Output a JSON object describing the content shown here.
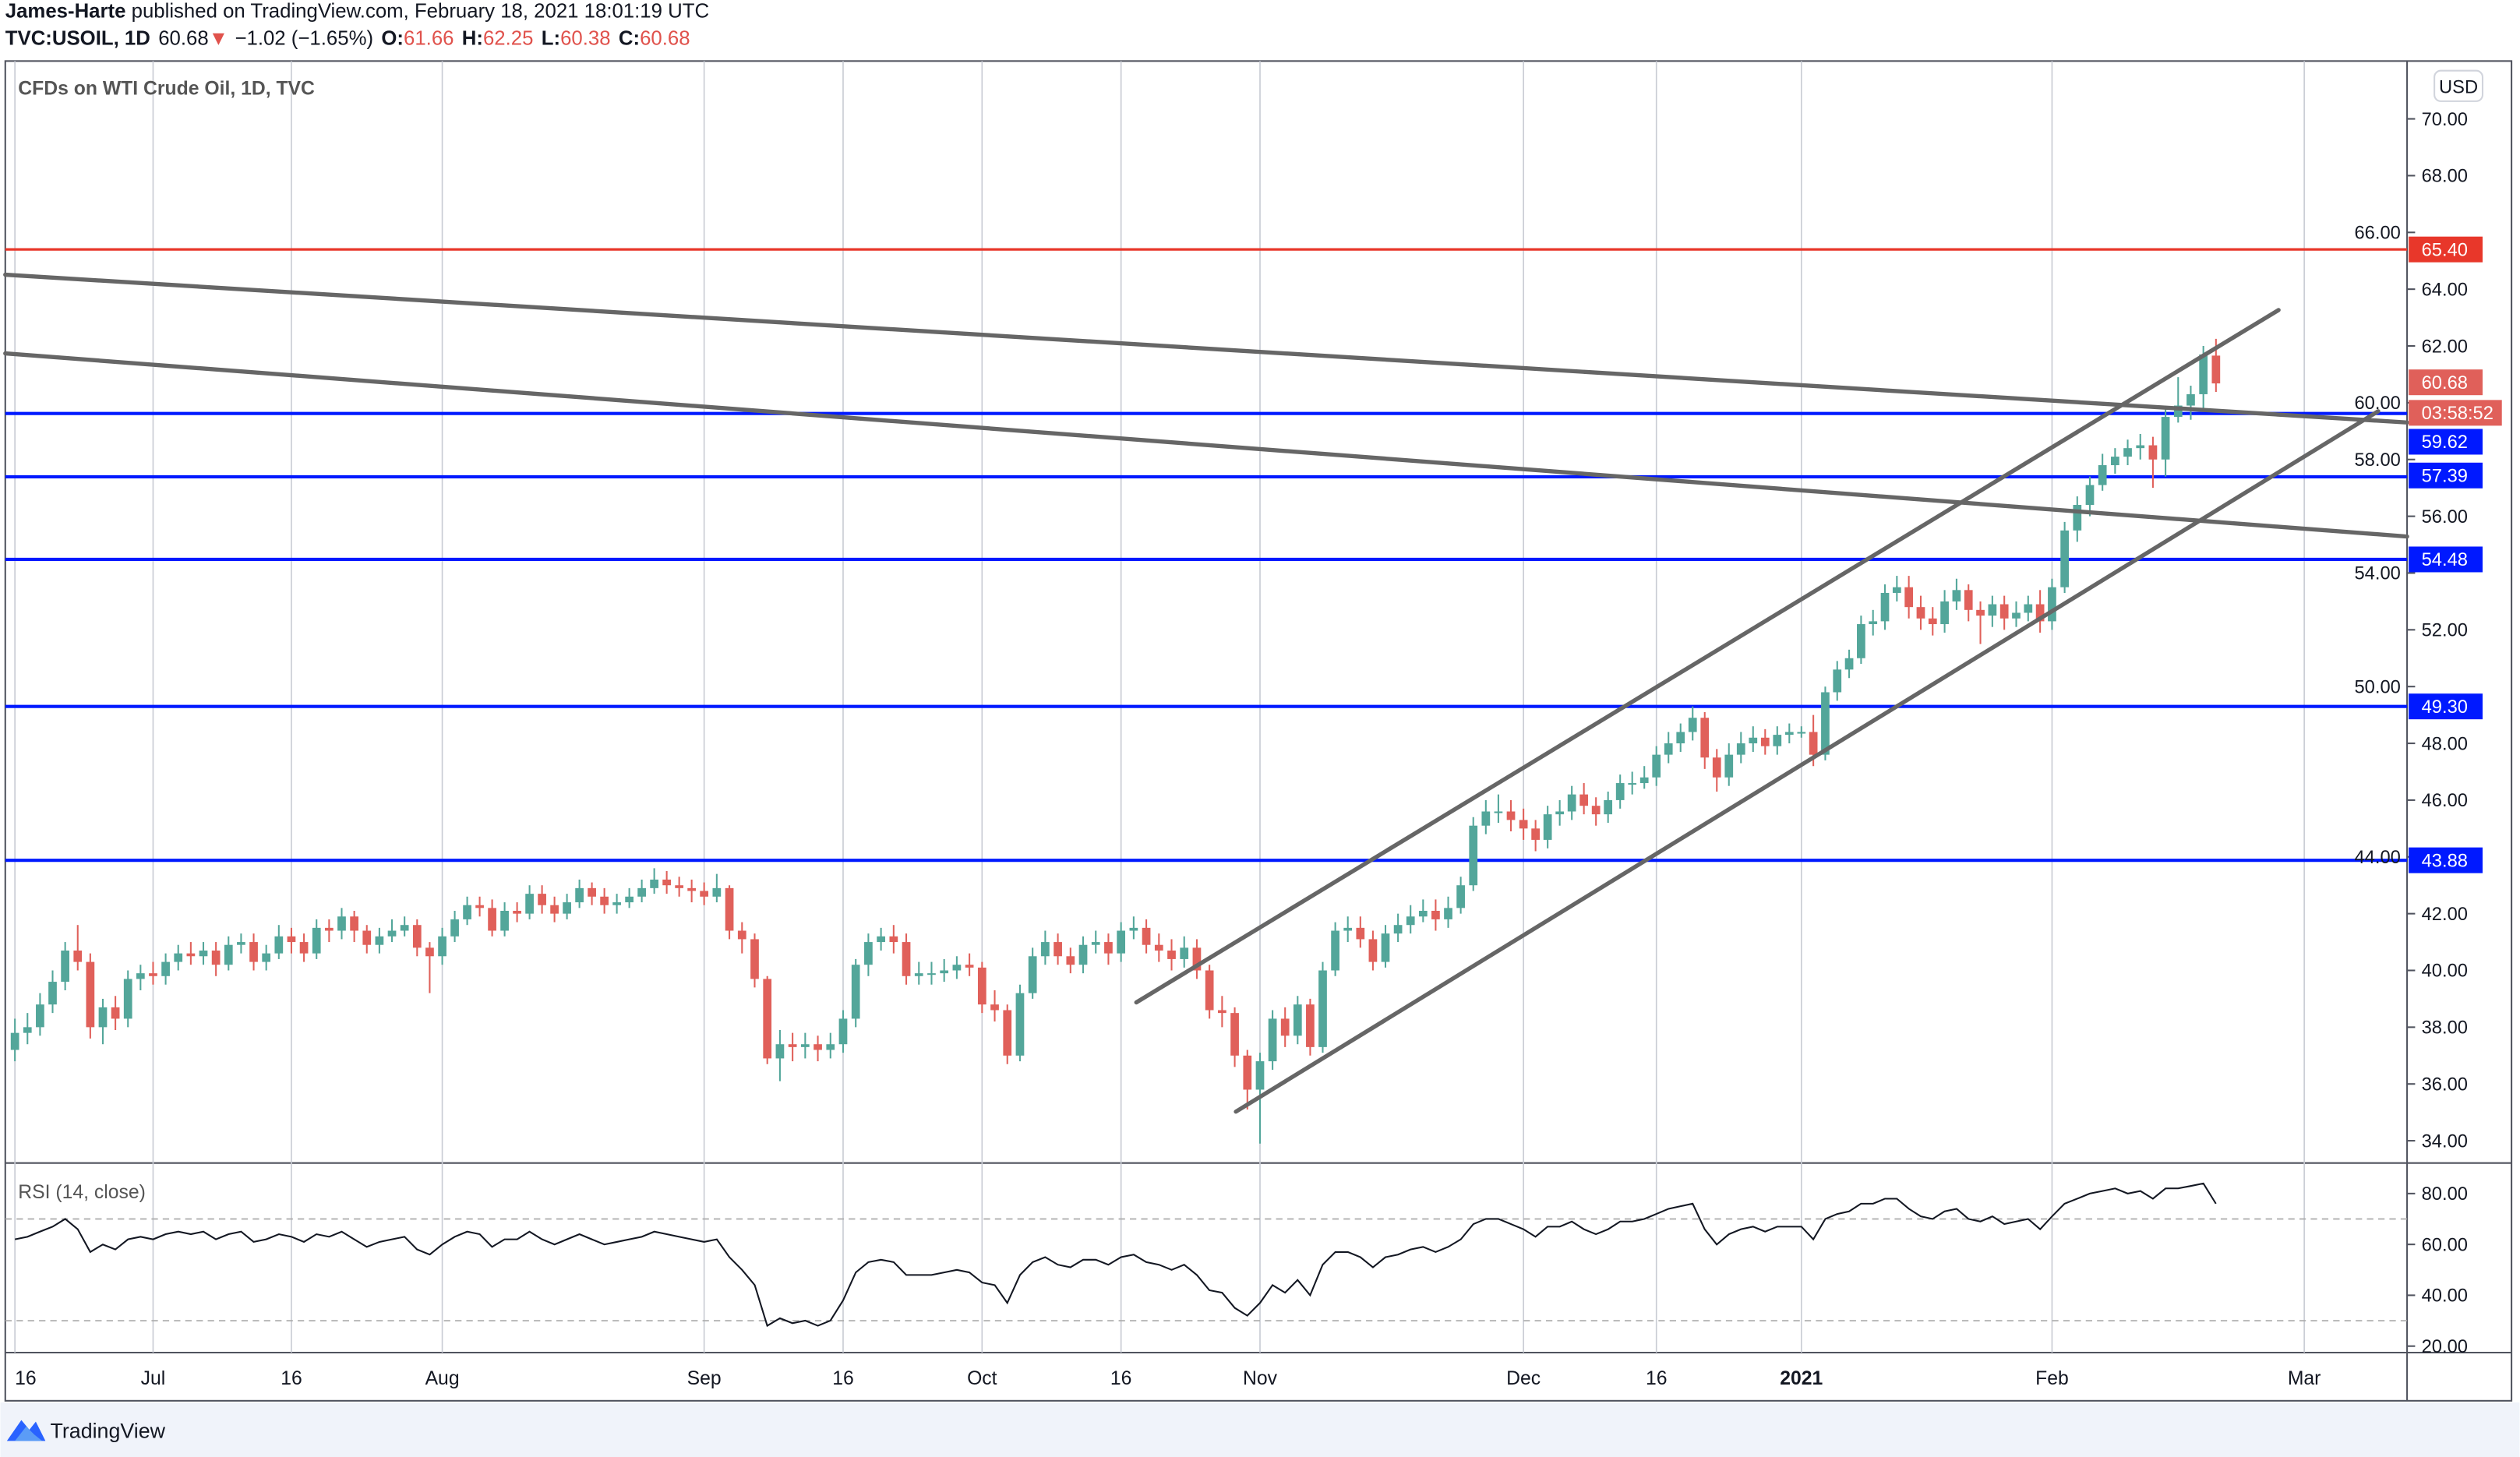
{
  "header": {
    "author": "James-Harte",
    "published": " published on TradingView.com, February 18, 2021 18:01:19 UTC",
    "symbol": "TVC:USOIL, 1D",
    "last": "60.68",
    "direction_icon": "triangle-down-icon",
    "change": "−1.02 (−1.65%)",
    "o_label": "O:",
    "o": "61.66",
    "h_label": "H:",
    "h": "62.25",
    "l_label": "L:",
    "l": "60.38",
    "c_label": "C:",
    "c": "60.68"
  },
  "chart": {
    "legend": "CFDs on WTI Crude Oil, 1D, TVC",
    "currency_button": "USD",
    "countdown": "03:58:52",
    "last_price_label": "60.68",
    "footer_brand": "TradingView"
  },
  "colors": {
    "up": "#53a69a",
    "down": "#e0605a",
    "resistance_red": "#e8372a",
    "support_blue": "#0019ff",
    "trendline": "#666666",
    "last_price": "#e0605a"
  },
  "chart_data": [
    {
      "type": "candlestick",
      "title": "CFDs on WTI Crude Oil, 1D, TVC",
      "ylim": [
        33,
        72
      ],
      "y_ticks": [
        "70.00",
        "68.00",
        "66.00",
        "64.00",
        "62.00",
        "60.00",
        "58.00",
        "56.00",
        "54.00",
        "52.00",
        "50.00",
        "48.00",
        "46.00",
        "44.00",
        "42.00",
        "40.00",
        "38.00",
        "36.00",
        "34.00"
      ],
      "x_ticks": [
        "16",
        "Jul",
        "16",
        "Aug",
        "Sep",
        "16",
        "Oct",
        "16",
        "Nov",
        "Dec",
        "16",
        "2021",
        "Feb",
        "Mar"
      ],
      "grid": "vertical",
      "horizontal_levels": [
        {
          "price": 65.4,
          "label": "65.40",
          "color": "#e8372a"
        },
        {
          "price": 59.62,
          "label": "59.62",
          "color": "#0019ff"
        },
        {
          "price": 57.39,
          "label": "57.39",
          "color": "#0019ff"
        },
        {
          "price": 54.48,
          "label": "54.48",
          "color": "#0019ff"
        },
        {
          "price": 49.3,
          "label": "49.30",
          "color": "#0019ff"
        },
        {
          "price": 43.88,
          "label": "43.88",
          "color": "#0019ff"
        }
      ],
      "ohlc": [
        [
          37.2,
          38.3,
          36.8,
          37.8
        ],
        [
          37.8,
          38.5,
          37.4,
          38.0
        ],
        [
          38.0,
          39.2,
          37.7,
          38.8
        ],
        [
          38.8,
          40.0,
          38.5,
          39.6
        ],
        [
          39.6,
          41.0,
          39.3,
          40.7
        ],
        [
          40.7,
          41.6,
          40.0,
          40.3
        ],
        [
          40.3,
          40.6,
          37.6,
          38.0
        ],
        [
          38.0,
          39.0,
          37.4,
          38.7
        ],
        [
          38.7,
          39.1,
          37.9,
          38.3
        ],
        [
          38.3,
          40.0,
          38.0,
          39.7
        ],
        [
          39.7,
          40.2,
          39.3,
          39.9
        ],
        [
          39.9,
          40.3,
          39.5,
          39.8
        ],
        [
          39.8,
          40.6,
          39.5,
          40.3
        ],
        [
          40.3,
          40.9,
          40.0,
          40.6
        ],
        [
          40.6,
          41.0,
          40.2,
          40.5
        ],
        [
          40.5,
          41.0,
          40.2,
          40.7
        ],
        [
          40.7,
          41.0,
          39.8,
          40.2
        ],
        [
          40.2,
          41.2,
          40.0,
          40.9
        ],
        [
          40.9,
          41.3,
          40.6,
          41.0
        ],
        [
          41.0,
          41.3,
          40.0,
          40.3
        ],
        [
          40.3,
          40.9,
          40.0,
          40.6
        ],
        [
          40.6,
          41.6,
          40.4,
          41.2
        ],
        [
          41.2,
          41.5,
          40.6,
          41.0
        ],
        [
          41.0,
          41.3,
          40.3,
          40.6
        ],
        [
          40.6,
          41.8,
          40.4,
          41.5
        ],
        [
          41.5,
          41.8,
          41.0,
          41.4
        ],
        [
          41.4,
          42.2,
          41.1,
          41.9
        ],
        [
          41.9,
          42.1,
          41.0,
          41.4
        ],
        [
          41.4,
          41.6,
          40.6,
          40.9
        ],
        [
          40.9,
          41.5,
          40.6,
          41.2
        ],
        [
          41.2,
          41.8,
          41.0,
          41.4
        ],
        [
          41.4,
          41.9,
          41.2,
          41.6
        ],
        [
          41.6,
          41.8,
          40.5,
          40.8
        ],
        [
          40.8,
          41.0,
          39.2,
          40.5
        ],
        [
          40.5,
          41.5,
          40.2,
          41.2
        ],
        [
          41.2,
          42.1,
          41.0,
          41.8
        ],
        [
          41.8,
          42.6,
          41.6,
          42.3
        ],
        [
          42.3,
          42.6,
          41.9,
          42.2
        ],
        [
          42.2,
          42.5,
          41.2,
          41.4
        ],
        [
          41.4,
          42.4,
          41.2,
          42.1
        ],
        [
          42.1,
          42.4,
          41.7,
          42.0
        ],
        [
          42.0,
          43.0,
          41.8,
          42.7
        ],
        [
          42.7,
          43.0,
          42.0,
          42.3
        ],
        [
          42.3,
          42.6,
          41.7,
          42.0
        ],
        [
          42.0,
          42.7,
          41.8,
          42.4
        ],
        [
          42.4,
          43.2,
          42.2,
          42.9
        ],
        [
          42.9,
          43.1,
          42.3,
          42.6
        ],
        [
          42.6,
          42.9,
          42.0,
          42.3
        ],
        [
          42.3,
          42.7,
          42.0,
          42.4
        ],
        [
          42.4,
          42.9,
          42.2,
          42.6
        ],
        [
          42.6,
          43.2,
          42.4,
          42.9
        ],
        [
          42.9,
          43.6,
          42.7,
          43.2
        ],
        [
          43.2,
          43.5,
          42.7,
          43.0
        ],
        [
          43.0,
          43.3,
          42.6,
          42.9
        ],
        [
          42.9,
          43.2,
          42.4,
          42.8
        ],
        [
          42.8,
          43.1,
          42.3,
          42.6
        ],
        [
          42.6,
          43.4,
          42.4,
          42.9
        ],
        [
          42.9,
          43.0,
          41.1,
          41.4
        ],
        [
          41.4,
          41.7,
          40.6,
          41.1
        ],
        [
          41.1,
          41.3,
          39.4,
          39.7
        ],
        [
          39.7,
          39.8,
          36.7,
          36.9
        ],
        [
          36.9,
          37.9,
          36.1,
          37.4
        ],
        [
          37.4,
          37.8,
          36.8,
          37.3
        ],
        [
          37.3,
          37.8,
          36.9,
          37.4
        ],
        [
          37.4,
          37.7,
          36.8,
          37.2
        ],
        [
          37.2,
          37.8,
          36.9,
          37.4
        ],
        [
          37.4,
          38.6,
          37.1,
          38.3
        ],
        [
          38.3,
          40.4,
          38.0,
          40.2
        ],
        [
          40.2,
          41.3,
          39.8,
          41.0
        ],
        [
          41.0,
          41.5,
          40.7,
          41.2
        ],
        [
          41.2,
          41.6,
          40.6,
          41.0
        ],
        [
          41.0,
          41.3,
          39.5,
          39.8
        ],
        [
          39.8,
          40.3,
          39.5,
          39.9
        ],
        [
          39.9,
          40.3,
          39.5,
          39.9
        ],
        [
          39.9,
          40.4,
          39.6,
          40.0
        ],
        [
          40.0,
          40.5,
          39.7,
          40.2
        ],
        [
          40.2,
          40.6,
          39.8,
          40.1
        ],
        [
          40.1,
          40.3,
          38.5,
          38.8
        ],
        [
          38.8,
          39.3,
          38.2,
          38.6
        ],
        [
          38.6,
          38.8,
          36.7,
          37.0
        ],
        [
          37.0,
          39.5,
          36.8,
          39.2
        ],
        [
          39.2,
          40.8,
          39.0,
          40.5
        ],
        [
          40.5,
          41.4,
          40.2,
          41.0
        ],
        [
          41.0,
          41.3,
          40.2,
          40.5
        ],
        [
          40.5,
          40.8,
          39.9,
          40.2
        ],
        [
          40.2,
          41.2,
          39.9,
          40.9
        ],
        [
          40.9,
          41.4,
          40.6,
          41.0
        ],
        [
          41.0,
          41.3,
          40.2,
          40.6
        ],
        [
          40.6,
          41.7,
          40.3,
          41.4
        ],
        [
          41.4,
          41.9,
          41.1,
          41.5
        ],
        [
          41.5,
          41.8,
          40.6,
          40.9
        ],
        [
          40.9,
          41.3,
          40.3,
          40.7
        ],
        [
          40.7,
          41.1,
          40.0,
          40.4
        ],
        [
          40.4,
          41.2,
          40.1,
          40.8
        ],
        [
          40.8,
          41.1,
          39.7,
          40.0
        ],
        [
          40.0,
          40.2,
          38.3,
          38.6
        ],
        [
          38.6,
          39.1,
          38.0,
          38.5
        ],
        [
          38.5,
          38.7,
          36.6,
          37.0
        ],
        [
          37.0,
          37.2,
          35.1,
          35.8
        ],
        [
          35.8,
          37.1,
          33.9,
          36.8
        ],
        [
          36.8,
          38.6,
          36.5,
          38.3
        ],
        [
          38.3,
          38.7,
          37.3,
          37.7
        ],
        [
          37.7,
          39.1,
          37.4,
          38.8
        ],
        [
          38.8,
          39.0,
          37.0,
          37.3
        ],
        [
          37.3,
          40.3,
          37.1,
          40.0
        ],
        [
          40.0,
          41.7,
          39.8,
          41.4
        ],
        [
          41.4,
          41.9,
          41.0,
          41.5
        ],
        [
          41.5,
          41.9,
          40.8,
          41.1
        ],
        [
          41.1,
          41.4,
          40.0,
          40.3
        ],
        [
          40.3,
          41.6,
          40.1,
          41.3
        ],
        [
          41.3,
          42.0,
          41.0,
          41.6
        ],
        [
          41.6,
          42.3,
          41.3,
          41.9
        ],
        [
          41.9,
          42.5,
          41.7,
          42.1
        ],
        [
          42.1,
          42.5,
          41.4,
          41.8
        ],
        [
          41.8,
          42.6,
          41.5,
          42.2
        ],
        [
          42.2,
          43.3,
          42.0,
          43.0
        ],
        [
          43.0,
          45.4,
          42.8,
          45.1
        ],
        [
          45.1,
          46.0,
          44.8,
          45.6
        ],
        [
          45.6,
          46.2,
          45.2,
          45.6
        ],
        [
          45.6,
          46.0,
          44.9,
          45.3
        ],
        [
          45.3,
          45.7,
          44.6,
          45.0
        ],
        [
          45.0,
          45.3,
          44.2,
          44.6
        ],
        [
          44.6,
          45.8,
          44.3,
          45.5
        ],
        [
          45.5,
          46.0,
          45.1,
          45.6
        ],
        [
          45.6,
          46.5,
          45.3,
          46.2
        ],
        [
          46.2,
          46.6,
          45.5,
          45.8
        ],
        [
          45.8,
          46.1,
          45.1,
          45.5
        ],
        [
          45.5,
          46.3,
          45.2,
          46.0
        ],
        [
          46.0,
          46.9,
          45.7,
          46.6
        ],
        [
          46.6,
          47.0,
          46.2,
          46.6
        ],
        [
          46.6,
          47.2,
          46.4,
          46.8
        ],
        [
          46.8,
          47.9,
          46.5,
          47.6
        ],
        [
          47.6,
          48.4,
          47.3,
          48.0
        ],
        [
          48.0,
          48.7,
          47.7,
          48.4
        ],
        [
          48.4,
          49.3,
          48.1,
          48.9
        ],
        [
          48.9,
          49.1,
          47.1,
          47.5
        ],
        [
          47.5,
          47.8,
          46.3,
          46.8
        ],
        [
          46.8,
          48.0,
          46.5,
          47.6
        ],
        [
          47.6,
          48.4,
          47.3,
          48.0
        ],
        [
          48.0,
          48.6,
          47.7,
          48.2
        ],
        [
          48.2,
          48.5,
          47.6,
          47.9
        ],
        [
          47.9,
          48.6,
          47.6,
          48.3
        ],
        [
          48.3,
          48.7,
          48.0,
          48.4
        ],
        [
          48.4,
          48.6,
          48.2,
          48.4
        ],
        [
          48.4,
          49.0,
          47.2,
          47.6
        ],
        [
          47.6,
          50.0,
          47.4,
          49.8
        ],
        [
          49.8,
          50.9,
          49.5,
          50.6
        ],
        [
          50.6,
          51.3,
          50.3,
          51.0
        ],
        [
          51.0,
          52.5,
          50.8,
          52.2
        ],
        [
          52.2,
          52.7,
          51.8,
          52.3
        ],
        [
          52.3,
          53.6,
          52.0,
          53.3
        ],
        [
          53.3,
          53.9,
          53.0,
          53.5
        ],
        [
          53.5,
          53.9,
          52.4,
          52.8
        ],
        [
          52.8,
          53.2,
          52.0,
          52.4
        ],
        [
          52.4,
          52.8,
          51.8,
          52.2
        ],
        [
          52.2,
          53.4,
          51.9,
          53.0
        ],
        [
          53.0,
          53.8,
          52.7,
          53.4
        ],
        [
          53.4,
          53.6,
          52.3,
          52.7
        ],
        [
          52.7,
          53.0,
          51.5,
          52.5
        ],
        [
          52.5,
          53.2,
          52.1,
          52.9
        ],
        [
          52.9,
          53.2,
          52.0,
          52.4
        ],
        [
          52.4,
          53.0,
          52.1,
          52.6
        ],
        [
          52.6,
          53.2,
          52.3,
          52.9
        ],
        [
          52.9,
          53.4,
          51.9,
          52.3
        ],
        [
          52.3,
          53.8,
          52.0,
          53.5
        ],
        [
          53.5,
          55.8,
          53.3,
          55.5
        ],
        [
          55.5,
          56.7,
          55.1,
          56.4
        ],
        [
          56.4,
          57.4,
          56.0,
          57.1
        ],
        [
          57.1,
          58.2,
          56.9,
          57.8
        ],
        [
          57.8,
          58.4,
          57.5,
          58.1
        ],
        [
          58.1,
          58.7,
          57.8,
          58.4
        ],
        [
          58.4,
          58.9,
          58.0,
          58.5
        ],
        [
          58.5,
          58.8,
          57.0,
          58.0
        ],
        [
          58.0,
          59.8,
          57.4,
          59.5
        ],
        [
          59.5,
          60.9,
          59.3,
          59.9
        ],
        [
          59.9,
          60.6,
          59.4,
          60.3
        ],
        [
          60.3,
          62.0,
          59.7,
          61.7
        ],
        [
          61.66,
          62.25,
          60.38,
          60.68
        ]
      ]
    },
    {
      "type": "line",
      "title": "RSI (14, close)",
      "ylim": [
        15,
        90
      ],
      "y_ticks": [
        "80.00",
        "60.00",
        "40.00",
        "20.00"
      ],
      "bands": [
        70,
        30
      ],
      "values": [
        62,
        63,
        65,
        67,
        70,
        66,
        57,
        60,
        58,
        62,
        63,
        62,
        64,
        65,
        64,
        65,
        62,
        64,
        65,
        61,
        62,
        64,
        63,
        61,
        64,
        63,
        65,
        62,
        59,
        61,
        62,
        63,
        58,
        56,
        60,
        63,
        65,
        64,
        59,
        62,
        62,
        65,
        62,
        60,
        62,
        64,
        62,
        60,
        61,
        62,
        63,
        65,
        64,
        63,
        62,
        61,
        62,
        55,
        50,
        44,
        28,
        31,
        29,
        30,
        28,
        30,
        38,
        49,
        53,
        54,
        53,
        48,
        48,
        48,
        49,
        50,
        49,
        45,
        44,
        37,
        48,
        53,
        55,
        52,
        51,
        54,
        54,
        52,
        55,
        56,
        53,
        52,
        50,
        52,
        48,
        42,
        41,
        35,
        32,
        37,
        44,
        41,
        46,
        40,
        52,
        57,
        57,
        55,
        51,
        55,
        56,
        58,
        59,
        57,
        59,
        62,
        68,
        70,
        70,
        68,
        66,
        63,
        67,
        67,
        69,
        66,
        64,
        66,
        69,
        69,
        70,
        72,
        74,
        75,
        76,
        66,
        60,
        64,
        66,
        67,
        65,
        67,
        67,
        67,
        62,
        70,
        72,
        73,
        76,
        76,
        78,
        78,
        74,
        71,
        70,
        73,
        74,
        70,
        69,
        71,
        68,
        69,
        70,
        66,
        71,
        76,
        78,
        80,
        81,
        82,
        80,
        81,
        78,
        82,
        82,
        83,
        84,
        76
      ]
    }
  ]
}
